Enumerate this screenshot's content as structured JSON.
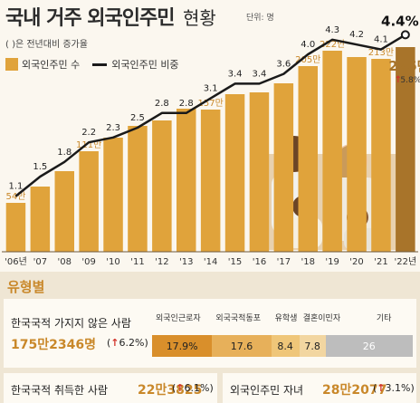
{
  "header": {
    "title_main": "국내 거주 외국인주민",
    "title_sub": "현황",
    "unit": "단위: 명",
    "note": "( )은 전년대비 증가율"
  },
  "legend": {
    "bars": "외국인주민 수",
    "line": "외국인주민 비중"
  },
  "chart_data": {
    "type": "bar+line",
    "categories": [
      "'06년",
      "'07",
      "'08",
      "'09",
      "'10",
      "'11",
      "'12",
      "'13",
      "'14",
      "'15",
      "'16",
      "'17",
      "'18",
      "'19",
      "'20",
      "'21",
      "'22년"
    ],
    "bar_series": {
      "name": "외국인주민 수",
      "values": [
        54,
        72,
        89,
        111,
        126,
        139,
        145,
        158,
        157,
        174,
        176,
        186,
        205,
        222,
        215,
        213,
        226
      ],
      "labels": {
        "0": "54만",
        "3": "111만",
        "8": "157만",
        "12": "205만",
        "13": "222만",
        "15": "213만",
        "16": "226만"
      }
    },
    "line_series": {
      "name": "외국인주민 비중",
      "values": [
        1.1,
        1.5,
        1.8,
        2.2,
        2.3,
        2.5,
        2.8,
        2.8,
        3.1,
        3.4,
        3.4,
        3.6,
        4.0,
        4.3,
        4.2,
        4.1,
        4.4
      ],
      "labels": [
        "1.1",
        "1.5",
        "1.8",
        "2.2",
        "2.3",
        "2.5",
        "2.8",
        "2.8",
        "3.1",
        "3.4",
        "3.4",
        "3.6",
        "4.0",
        "4.3",
        "4.2",
        "4.1",
        "4.4%"
      ]
    },
    "highlight_growth": "5.8%",
    "colors": {
      "bar": "#e0a33b",
      "bar_last": "#a8742a",
      "line": "#1a1a1a",
      "label": "#c9882a"
    }
  },
  "types": {
    "section_title": "유형별",
    "non_citizen": {
      "label": "한국국적 가지지 않은 사람",
      "count": "175만2346명",
      "growth": "6.2%",
      "segments": [
        {
          "name": "외국인근로자",
          "value": "17.9%",
          "share": 17.9,
          "color": "#d98f2b"
        },
        {
          "name": "외국국적동포",
          "value": "17.6",
          "share": 17.6,
          "color": "#e7b05a"
        },
        {
          "name": "유학생",
          "value": "8.4",
          "share": 8.4,
          "color": "#efc679"
        },
        {
          "name": "결혼이민자",
          "value": "7.8",
          "share": 7.8,
          "color": "#f2d6a1"
        },
        {
          "name": "기타",
          "value": "26",
          "share": 26,
          "color": "#bdbdbd"
        }
      ]
    },
    "naturalized": {
      "label": "한국국적 취득한 사람",
      "count": "22만3825",
      "growth": "6.1%"
    },
    "children": {
      "label": "외국인주민 자녀",
      "count": "28만2077",
      "growth": "3.1%"
    }
  }
}
